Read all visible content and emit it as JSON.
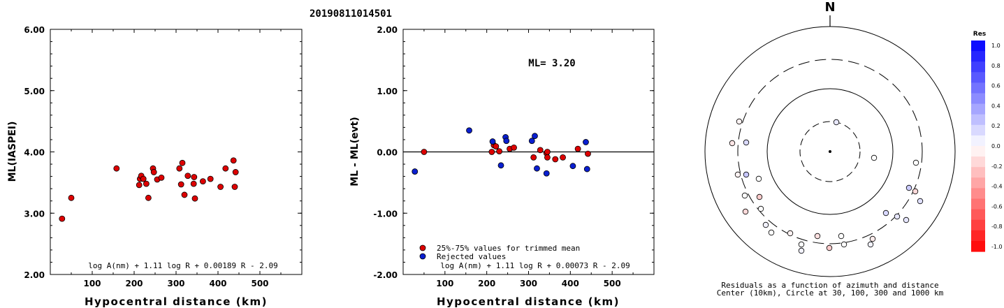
{
  "title": "20190811014501",
  "chart_data": [
    {
      "type": "scatter",
      "xlabel": "Hypocentral distance (km)",
      "ylabel": "ML(IASPEI)",
      "xlim": [
        0,
        600
      ],
      "ylim": [
        2.0,
        6.0
      ],
      "xticks": [
        "100",
        "200",
        "300",
        "400",
        "500"
      ],
      "yticks": [
        "2.00",
        "3.00",
        "4.00",
        "5.00",
        "6.00"
      ],
      "formula": "log A(nm) + 1.11 log R + 0.00189 R - 2.09",
      "points": [
        [
          28,
          2.91
        ],
        [
          50,
          3.25
        ],
        [
          158,
          3.73
        ],
        [
          212,
          3.46
        ],
        [
          214,
          3.56
        ],
        [
          217,
          3.61
        ],
        [
          222,
          3.56
        ],
        [
          229,
          3.48
        ],
        [
          234,
          3.25
        ],
        [
          245,
          3.73
        ],
        [
          247,
          3.67
        ],
        [
          255,
          3.55
        ],
        [
          265,
          3.58
        ],
        [
          308,
          3.73
        ],
        [
          312,
          3.47
        ],
        [
          315,
          3.82
        ],
        [
          320,
          3.3
        ],
        [
          328,
          3.61
        ],
        [
          342,
          3.48
        ],
        [
          343,
          3.59
        ],
        [
          345,
          3.24
        ],
        [
          364,
          3.52
        ],
        [
          382,
          3.56
        ],
        [
          406,
          3.43
        ],
        [
          418,
          3.73
        ],
        [
          437,
          3.86
        ],
        [
          442,
          3.67
        ],
        [
          440,
          3.43
        ]
      ]
    },
    {
      "type": "scatter",
      "xlabel": "Hypocentral distance (km)",
      "ylabel": "ML - ML(evt)",
      "xlim": [
        0,
        600
      ],
      "ylim": [
        -2.0,
        2.0
      ],
      "xticks": [
        "100",
        "200",
        "300",
        "400",
        "500"
      ],
      "yticks": [
        "-2.00",
        "-1.00",
        "0.00",
        "1.00",
        "2.00"
      ],
      "annotation": "ML= 3.20",
      "formula": "log A(nm) + 1.11 log R + 0.00073 R - 2.09",
      "legend": [
        "25%-75% values for trimmed mean",
        "Rejected values"
      ],
      "colors": {
        "accepted": "#dd0000",
        "rejected": "#0a1fd0"
      },
      "accepted": [
        [
          50,
          0.0
        ],
        [
          212,
          0.0
        ],
        [
          217,
          0.11
        ],
        [
          222,
          0.09
        ],
        [
          230,
          0.01
        ],
        [
          255,
          0.05
        ],
        [
          265,
          0.07
        ],
        [
          312,
          -0.09
        ],
        [
          328,
          0.03
        ],
        [
          343,
          -0.02
        ],
        [
          345,
          0.0
        ],
        [
          345,
          -0.09
        ],
        [
          364,
          -0.12
        ],
        [
          382,
          -0.09
        ],
        [
          418,
          0.05
        ],
        [
          442,
          -0.03
        ]
      ],
      "rejected": [
        [
          28,
          -0.32
        ],
        [
          158,
          0.35
        ],
        [
          214,
          0.17
        ],
        [
          234,
          -0.22
        ],
        [
          245,
          0.24
        ],
        [
          247,
          0.18
        ],
        [
          308,
          0.18
        ],
        [
          315,
          0.26
        ],
        [
          320,
          -0.27
        ],
        [
          343,
          -0.35
        ],
        [
          406,
          -0.23
        ],
        [
          437,
          0.16
        ],
        [
          440,
          -0.28
        ]
      ]
    },
    {
      "type": "scatter",
      "subtype": "polar-residuals",
      "north_label": "N",
      "caption_line1": "Residuals as a function of azimuth and distance",
      "caption_line2": "Center (10km), Circle at 30, 100, 300 and 1000 km",
      "colorbar_title": "Res",
      "colorbar_ticks": [
        "1.0",
        "0.8",
        "0.6",
        "0.4",
        "0.2",
        "0.0",
        "-0.2",
        "-0.4",
        "-0.6",
        "-0.8",
        "-1.0"
      ],
      "points_residual": [
        0.09,
        0.0,
        -0.1,
        0.15,
        -0.05,
        -0.05,
        0.22,
        0.0,
        0.0,
        -0.2,
        -0.15,
        0.0,
        0.05,
        0.0,
        -0.05,
        0.0,
        0.05,
        -0.12,
        -0.2,
        0.0,
        0.0,
        -0.08,
        0.05,
        0.15,
        0.1,
        0.1,
        0.2,
        -0.15,
        0.12,
        0.0
      ]
    }
  ]
}
